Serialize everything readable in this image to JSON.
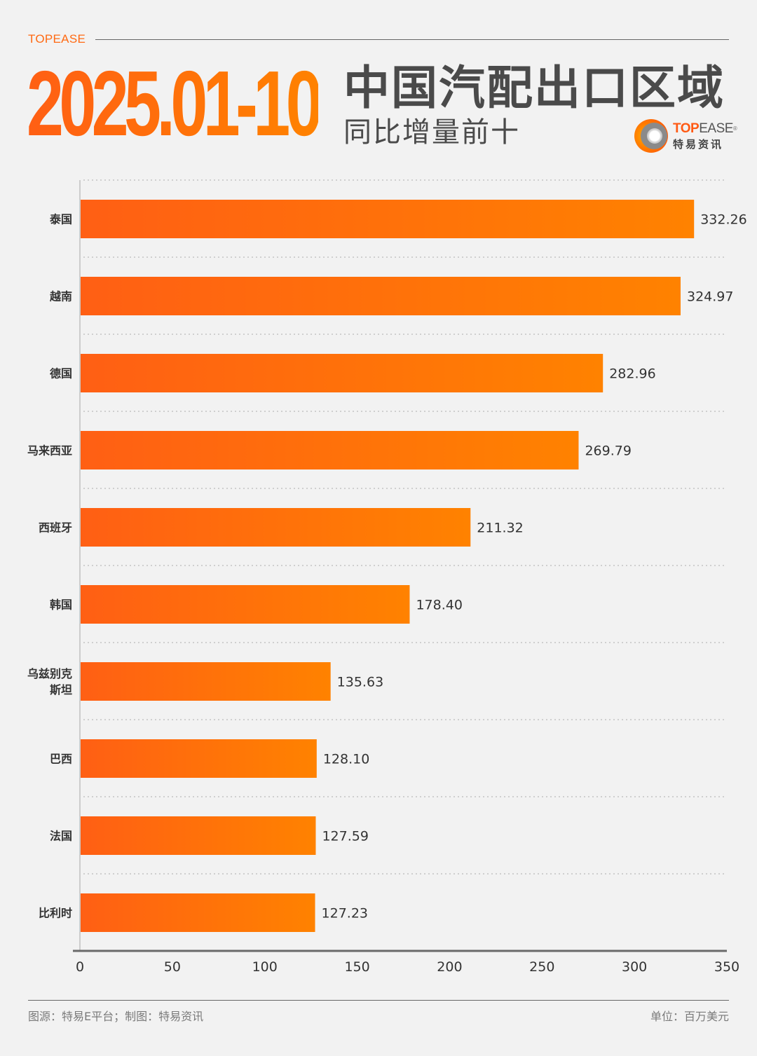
{
  "header": {
    "brand": "TOPEASE",
    "date_range": "2025.01-10",
    "title": "中国汽配出口区域",
    "subtitle": "同比增量前十"
  },
  "logo": {
    "en_part1": "TOP",
    "en_part2": "EASE",
    "registered": "®",
    "cn": "特易资讯",
    "icon": "topease-ring-logo-icon"
  },
  "colors": {
    "bar_start": "#ff5f14",
    "bar_end": "#ff8200",
    "accent": "#ff6a13",
    "text": "#333333"
  },
  "chart_data": {
    "type": "bar",
    "orientation": "horizontal",
    "title": "2025.01-10 中国汽配出口区域 同比增量前十",
    "categories": [
      "泰国",
      "越南",
      "德国",
      "马来西亚",
      "西班牙",
      "韩国",
      "乌兹别克斯坦",
      "巴西",
      "法国",
      "比利时"
    ],
    "category_display": [
      "泰国",
      "越南",
      "德国",
      "马来西亚",
      "西班牙",
      "韩国",
      "乌兹别克\n斯坦",
      "巴西",
      "法国",
      "比利时"
    ],
    "values": [
      332.26,
      324.97,
      282.96,
      269.79,
      211.32,
      178.4,
      135.63,
      128.1,
      127.59,
      127.23
    ],
    "value_labels": [
      "332.26",
      "324.97",
      "282.96",
      "269.79",
      "211.32",
      "178.40",
      "135.63",
      "128.10",
      "127.59",
      "127.23"
    ],
    "xlabel": "",
    "ylabel": "",
    "xlim": [
      0,
      350
    ],
    "xticks": [
      0,
      50,
      100,
      150,
      200,
      250,
      300,
      350
    ],
    "xtick_labels": [
      "0",
      "50",
      "100",
      "150",
      "200",
      "250",
      "300",
      "350"
    ],
    "unit": "百万美元",
    "grid": "horizontal dotted separators between categories",
    "legend": "none"
  },
  "footer": {
    "source": "图源：特易E平台；制图：特易资讯",
    "unit": "单位：百万美元"
  }
}
